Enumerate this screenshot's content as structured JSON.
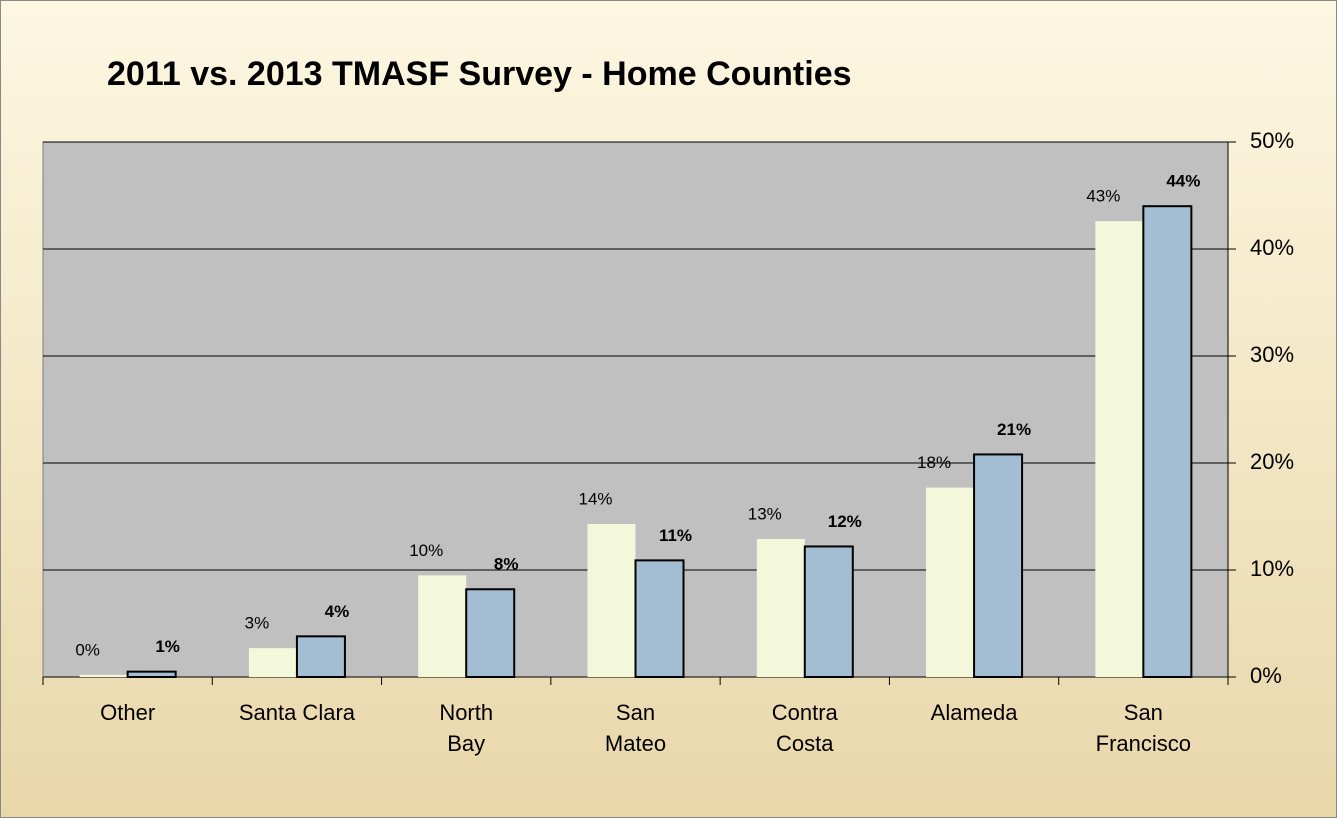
{
  "chart_data": {
    "type": "bar",
    "title": "2011 vs. 2013 TMASF Survey - Home Counties",
    "categories": [
      "Other",
      "Santa Clara",
      "North\nBay",
      "San\nMateo",
      "Contra\nCosta",
      "Alameda",
      "San\nFrancisco"
    ],
    "series": [
      {
        "color": "#f4f8da",
        "values": [
          0.2,
          2.7,
          9.5,
          14.3,
          12.9,
          17.7,
          42.6
        ],
        "value_labels": [
          "0%",
          "3%",
          "10%",
          "14%",
          "13%",
          "18%",
          "43%"
        ]
      },
      {
        "color": "#a3bed3",
        "values": [
          0.5,
          3.8,
          8.2,
          10.9,
          12.2,
          20.8,
          44.0
        ],
        "value_labels": [
          "1%",
          "4%",
          "8%",
          "11%",
          "12%",
          "21%",
          "44%"
        ]
      }
    ],
    "ylim": [
      0,
      50
    ],
    "yticks": [
      {
        "value": 0,
        "label": "0%"
      },
      {
        "value": 10,
        "label": "10%"
      },
      {
        "value": 20,
        "label": "20%"
      },
      {
        "value": 30,
        "label": "30%"
      },
      {
        "value": 40,
        "label": "40%"
      },
      {
        "value": 50,
        "label": "50%"
      }
    ],
    "grid": true
  }
}
